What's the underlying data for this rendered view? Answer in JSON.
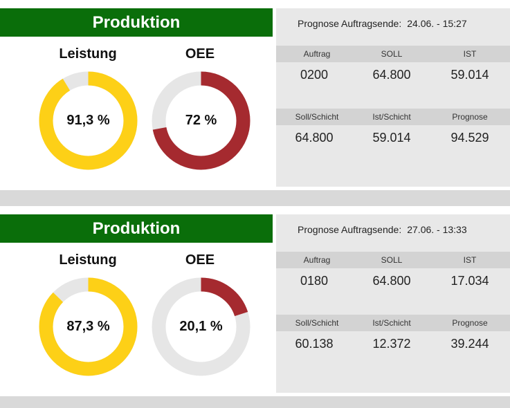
{
  "panels": [
    {
      "header": "Produktion",
      "leistung_label": "Leistung",
      "oee_label": "OEE",
      "leistung_value": "91,3 %",
      "leistung_fraction": 0.913,
      "oee_value": "72 %",
      "oee_fraction": 0.72,
      "prognose_label": "Prognose Auftragsende:",
      "prognose_value": "24.06. - 15:27",
      "row1_headers": [
        "Auftrag",
        "SOLL",
        "IST"
      ],
      "row1_values": [
        "0200",
        "64.800",
        "59.014"
      ],
      "row2_headers": [
        "Soll/Schicht",
        "Ist/Schicht",
        "Prognose"
      ],
      "row2_values": [
        "64.800",
        "59.014",
        "94.529"
      ]
    },
    {
      "header": "Produktion",
      "leistung_label": "Leistung",
      "oee_label": "OEE",
      "leistung_value": "87,3 %",
      "leistung_fraction": 0.873,
      "oee_value": "20,1 %",
      "oee_fraction": 0.201,
      "prognose_label": "Prognose Auftragsende:",
      "prognose_value": "27.06. - 13:33",
      "row1_headers": [
        "Auftrag",
        "SOLL",
        "IST"
      ],
      "row1_values": [
        "0180",
        "64.800",
        "17.034"
      ],
      "row2_headers": [
        "Soll/Schicht",
        "Ist/Schicht",
        "Prognose"
      ],
      "row2_values": [
        "60.138",
        "12.372",
        "39.244"
      ]
    }
  ],
  "colors": {
    "header_green": "#0a6e0a",
    "leistung_yellow": "#fdd017",
    "oee_red": "#a52a2f",
    "track_gray": "#e6e6e6"
  }
}
